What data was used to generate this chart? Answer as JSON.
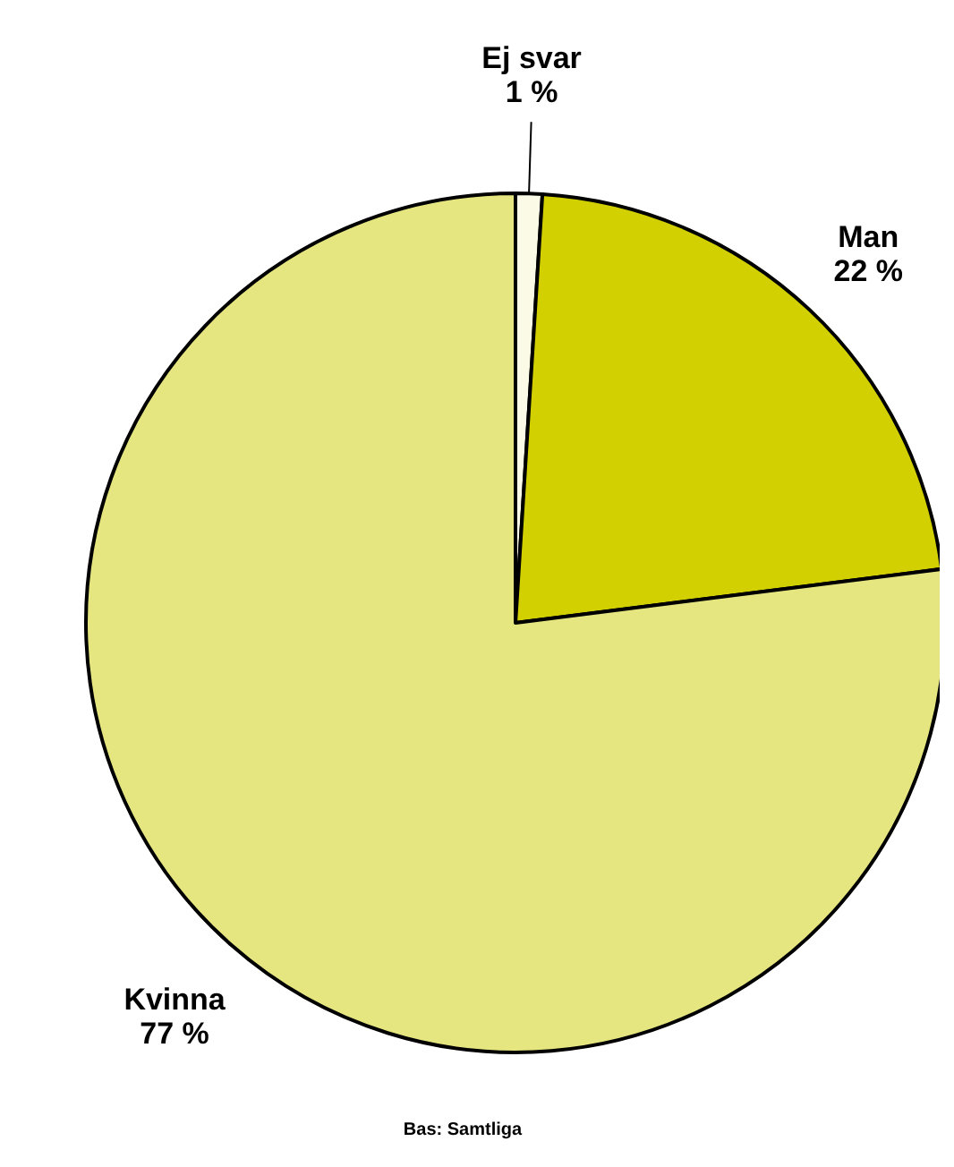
{
  "chart_data": {
    "type": "pie",
    "categories": [
      "Ej svar",
      "Man",
      "Kvinna"
    ],
    "values": [
      1,
      22,
      77
    ],
    "value_labels": [
      "1 %",
      "22 %",
      "77 %"
    ],
    "colors": [
      "#fafae6",
      "#d2d000",
      "#e6e680"
    ],
    "annotations": [
      "Bas: Samtliga"
    ]
  }
}
